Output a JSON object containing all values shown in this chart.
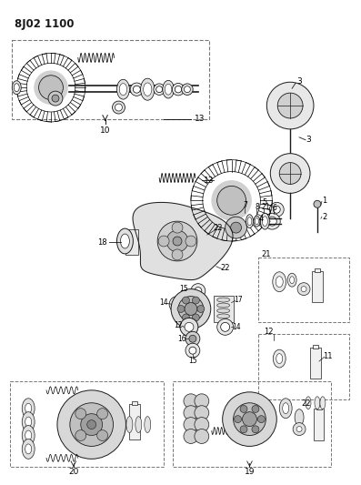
{
  "title": "8J02 1100",
  "bg_color": "#ffffff",
  "line_color": "#1a1a1a",
  "fig_width": 3.97,
  "fig_height": 5.33,
  "dpi": 100,
  "title_fontsize": 8.5,
  "title_fontweight": "bold"
}
